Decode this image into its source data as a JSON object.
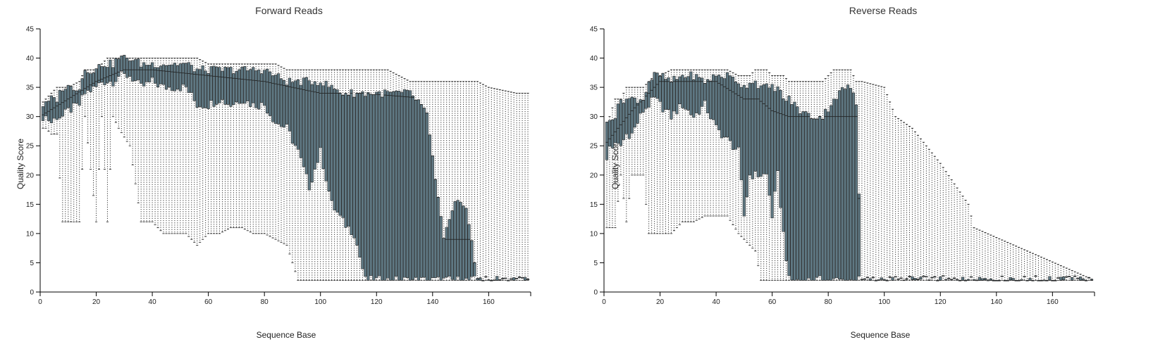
{
  "chart_data": [
    {
      "type": "box",
      "title": "Forward Reads",
      "xlabel": "Sequence Base",
      "ylabel": "Quality Score",
      "xlim": [
        0,
        175
      ],
      "ylim": [
        0,
        45
      ],
      "x_ticks": [
        0,
        20,
        40,
        60,
        80,
        100,
        120,
        140,
        160
      ],
      "y_ticks": [
        0,
        5,
        10,
        15,
        20,
        25,
        30,
        35,
        40,
        45
      ],
      "colors": {
        "box_fill": "#5f7883",
        "box_stroke": "#2b2b2b",
        "whisker": "#333333"
      },
      "control_points": {
        "base": [
          0,
          2,
          4,
          6,
          8,
          10,
          14,
          16,
          20,
          22,
          24,
          26,
          28,
          32,
          36,
          40,
          44,
          48,
          52,
          56,
          60,
          64,
          68,
          72,
          76,
          80,
          84,
          88,
          92,
          96,
          100,
          104,
          108,
          112,
          116,
          120,
          124,
          128,
          132,
          136,
          138,
          140,
          144,
          148,
          152,
          156,
          160,
          170,
          175
        ],
        "q1": [
          30,
          30,
          29,
          30,
          30,
          31,
          32,
          34,
          35,
          36,
          36,
          36,
          37,
          37,
          35,
          36,
          35,
          35,
          35,
          32,
          32,
          33,
          32,
          33,
          32,
          32,
          29,
          28,
          24,
          18,
          24,
          15,
          12,
          10,
          2,
          2,
          2,
          2,
          2,
          2,
          2,
          2,
          2,
          2,
          2,
          2,
          2,
          2,
          2
        ],
        "q3": [
          32,
          32,
          33,
          33,
          35,
          35,
          35,
          38,
          38,
          39,
          39,
          39,
          40,
          40,
          39,
          39,
          39,
          39,
          39,
          38,
          38,
          38,
          38,
          38,
          38,
          38,
          37,
          36,
          36,
          36,
          36,
          35,
          34,
          34,
          34,
          34,
          34,
          34,
          34,
          32,
          30,
          23,
          9,
          15,
          15,
          2,
          2,
          2,
          2
        ],
        "lw": [
          28,
          28,
          27,
          27,
          12,
          12,
          12,
          30,
          12,
          30,
          12,
          30,
          28,
          25,
          12,
          12,
          10,
          10,
          10,
          8,
          10,
          10,
          11,
          11,
          10,
          10,
          9,
          8,
          2,
          2,
          2,
          2,
          2,
          2,
          2,
          2,
          2,
          2,
          2,
          2,
          2,
          2,
          2,
          2,
          2,
          2,
          2,
          2,
          2
        ],
        "uw": [
          32,
          33,
          34,
          35,
          35,
          35,
          36,
          38,
          38,
          39,
          40,
          40,
          40,
          40,
          40,
          40,
          40,
          40,
          40,
          40,
          39,
          39,
          39,
          39,
          39,
          39,
          39,
          38,
          38,
          38,
          38,
          38,
          38,
          38,
          38,
          38,
          38,
          37,
          36,
          36,
          36,
          36,
          36,
          36,
          36,
          36,
          35,
          34,
          34
        ]
      },
      "median_points": {
        "base": [
          0,
          10,
          20,
          30,
          40,
          60,
          80,
          90,
          100,
          110,
          115,
          140,
          145,
          155,
          160,
          175
        ],
        "value": [
          30,
          33,
          36,
          38,
          38,
          37,
          36,
          35,
          34,
          34,
          34,
          33,
          9,
          9,
          2,
          2
        ]
      }
    },
    {
      "type": "box",
      "title": "Reverse Reads",
      "xlabel": "Sequence Base",
      "ylabel": "Quality Score",
      "xlim": [
        0,
        175
      ],
      "ylim": [
        0,
        45
      ],
      "x_ticks": [
        0,
        20,
        40,
        60,
        80,
        100,
        120,
        140,
        160
      ],
      "y_ticks": [
        0,
        5,
        10,
        15,
        20,
        25,
        30,
        35,
        40,
        45
      ],
      "colors": {
        "box_fill": "#5f7883",
        "box_stroke": "#2b2b2b",
        "whisker": "#333333"
      },
      "control_points": {
        "base": [
          0,
          2,
          4,
          6,
          8,
          10,
          14,
          16,
          18,
          20,
          24,
          28,
          32,
          36,
          40,
          44,
          48,
          50,
          52,
          54,
          56,
          58,
          60,
          62,
          64,
          66,
          70,
          74,
          78,
          82,
          86,
          88,
          90,
          92,
          100,
          104,
          110,
          120,
          130,
          132,
          175
        ],
        "q1": [
          20,
          25,
          25,
          25,
          27,
          27,
          31,
          32,
          33,
          32,
          30,
          32,
          30,
          32,
          28,
          26,
          24,
          13,
          20,
          20,
          20,
          20,
          13,
          20,
          10,
          2,
          2,
          2,
          2,
          2,
          2,
          2,
          2,
          2,
          2,
          2,
          2,
          2,
          2,
          2,
          2
        ],
        "q3": [
          28,
          30,
          30,
          33,
          33,
          33,
          33,
          36,
          37,
          37,
          36,
          37,
          37,
          36,
          37,
          37,
          36,
          35,
          36,
          36,
          35,
          35,
          35,
          35,
          33,
          33,
          31,
          30,
          30,
          33,
          35,
          35,
          32,
          2,
          2,
          2,
          2,
          2,
          2,
          2,
          2
        ],
        "lw": [
          11,
          11,
          11,
          20,
          12,
          20,
          20,
          10,
          10,
          10,
          10,
          12,
          12,
          13,
          13,
          13,
          10,
          9,
          8,
          7,
          2,
          2,
          2,
          2,
          2,
          2,
          2,
          2,
          2,
          2,
          2,
          2,
          2,
          2,
          2,
          2,
          2,
          2,
          2,
          2,
          2
        ],
        "uw": [
          28,
          30,
          33,
          33,
          35,
          35,
          35,
          36,
          37,
          37,
          38,
          38,
          38,
          38,
          38,
          38,
          37,
          37,
          37,
          38,
          38,
          38,
          37,
          37,
          37,
          36,
          36,
          36,
          36,
          38,
          38,
          38,
          36,
          36,
          35,
          30,
          28,
          22,
          15,
          11,
          2
        ]
      },
      "median_points": {
        "base": [
          0,
          10,
          20,
          30,
          40,
          50,
          55,
          60,
          66,
          90,
          92,
          175
        ],
        "value": [
          25,
          31,
          36,
          36,
          36,
          33,
          33,
          31,
          30,
          30,
          2,
          2
        ]
      }
    }
  ]
}
